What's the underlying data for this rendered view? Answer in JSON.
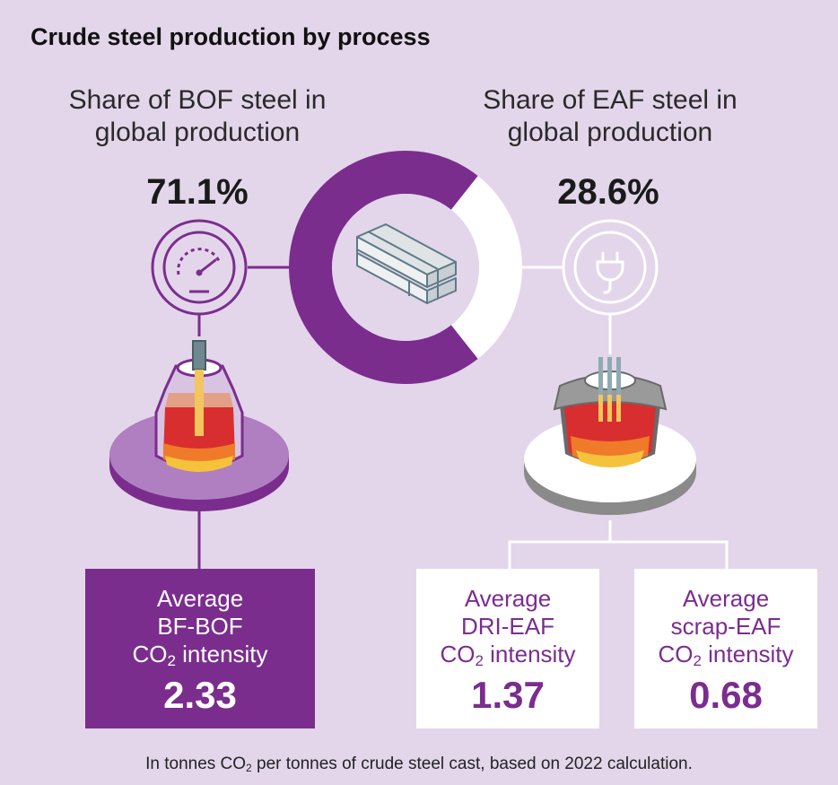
{
  "title": "Crude steel production by process",
  "colors": {
    "bof": "#7b2d8e",
    "eaf": "#ffffff",
    "background": "#e3d6ea"
  },
  "chart_data": {
    "type": "pie",
    "series": [
      {
        "name": "BOF",
        "value": 71.1
      },
      {
        "name": "EAF",
        "value": 28.6
      }
    ]
  },
  "bof": {
    "share_label_line1": "Share of BOF steel in",
    "share_label_line2": "global production",
    "share_value": "71.1%",
    "box_line1": "Average",
    "box_line2": "BF-BOF",
    "box_co": "CO",
    "box_sub": "2",
    "box_intensity": " intensity",
    "box_value": "2.33",
    "icon": "gauge-icon"
  },
  "eaf": {
    "share_label_line1": "Share of EAF steel in",
    "share_label_line2": "global production",
    "share_value": "28.6%",
    "icon": "power-plug-icon"
  },
  "dri": {
    "box_line1": "Average",
    "box_line2": "DRI-EAF",
    "box_co": "CO",
    "box_sub": "2",
    "box_intensity": " intensity",
    "box_value": "1.37"
  },
  "scrap": {
    "box_line1": "Average",
    "box_line2": "scrap-EAF",
    "box_co": "CO",
    "box_sub": "2",
    "box_intensity": " intensity",
    "box_value": "0.68"
  },
  "footnote": {
    "part1": "In tonnes CO",
    "sub": "2",
    "part2": " per tonnes of crude steel cast, based on 2022 calculation."
  },
  "center_icon": "steel-beams-icon"
}
